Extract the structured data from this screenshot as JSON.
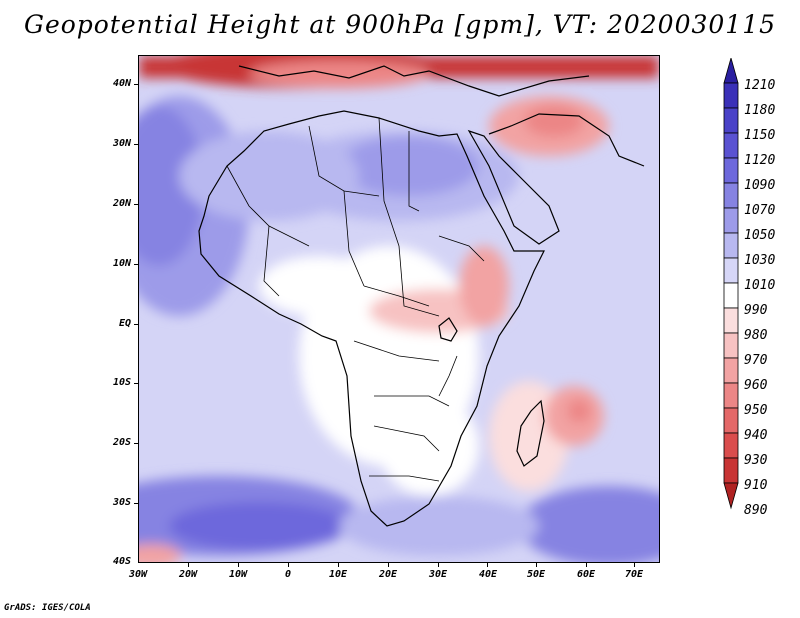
{
  "title": "Geopotential Height at 900hPa [gpm], VT: 2020030115",
  "footer": "GrADS: IGES/COLA",
  "map": {
    "lat_labels": [
      "40N",
      "30N",
      "20N",
      "10N",
      "EQ",
      "10S",
      "20S",
      "30S",
      "40S"
    ],
    "lon_labels": [
      "30W",
      "20W",
      "10W",
      "0",
      "10E",
      "20E",
      "30E",
      "40E",
      "50E",
      "60E",
      "70E"
    ],
    "extent": {
      "lon_min": -30,
      "lon_max": 75,
      "lat_min": -40,
      "lat_max": 45
    }
  },
  "colorbar": {
    "levels": [
      "1210",
      "1180",
      "1150",
      "1120",
      "1090",
      "1070",
      "1050",
      "1030",
      "1010",
      "990",
      "980",
      "970",
      "960",
      "950",
      "940",
      "930",
      "910",
      "890"
    ],
    "colors": [
      "#2a1fa0",
      "#3a30b8",
      "#4a42c8",
      "#5a52d2",
      "#6d68dc",
      "#8683e2",
      "#9d9be9",
      "#b8b8f0",
      "#d6d6f7",
      "#ffffff",
      "#fbdede",
      "#f7c2c2",
      "#f2a3a3",
      "#ec8686",
      "#e46868",
      "#da4d4d",
      "#c83434",
      "#b02222"
    ]
  }
}
